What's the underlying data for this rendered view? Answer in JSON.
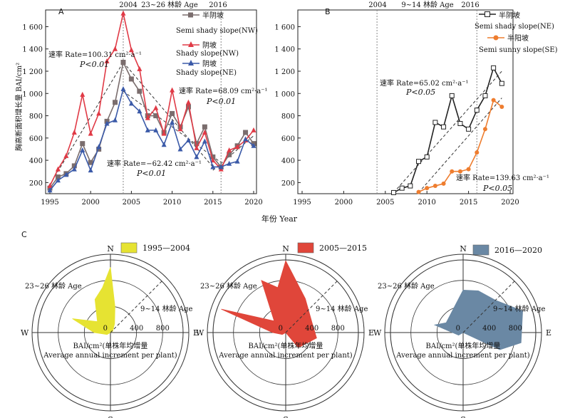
{
  "chart_data": [
    {
      "panel": "A",
      "type": "line",
      "ylabel": "胸高断面积增长量 BAI/cm²",
      "xlabel": "年份 Year",
      "xlim": [
        1995,
        2020
      ],
      "ylim": [
        100,
        1750
      ],
      "xticks": [
        "1995",
        "2000",
        "2005",
        "2010",
        "2015",
        "2020"
      ],
      "yticks": [
        "200",
        "400",
        "600",
        "800",
        "1 000",
        "1 200",
        "1 400",
        "1 600"
      ],
      "period_lines": [
        {
          "x": 2004,
          "label": "2004"
        },
        {
          "x": 2016,
          "label": "2016"
        }
      ],
      "period_label": "23~26 林龄 Age",
      "x": [
        1995,
        1996,
        1997,
        1998,
        1999,
        2000,
        2001,
        2002,
        2003,
        2004,
        2005,
        2006,
        2007,
        2008,
        2009,
        2010,
        2011,
        2012,
        2013,
        2014,
        2015,
        2016,
        2017,
        2018,
        2019,
        2020
      ],
      "series": [
        {
          "name_cn": "半阴坡",
          "name_en": "Semi shady slope(NW)",
          "color": "#7a6d6d",
          "marker": "square",
          "values": [
            150,
            250,
            280,
            350,
            550,
            380,
            500,
            750,
            920,
            1280,
            1130,
            1020,
            800,
            800,
            650,
            820,
            700,
            880,
            550,
            700,
            430,
            340,
            450,
            530,
            650,
            550
          ]
        },
        {
          "name_cn": "阴坡",
          "name_en": "Shady slope(NW)",
          "color": "#e03a46",
          "marker": "triangle",
          "values": [
            170,
            320,
            440,
            650,
            990,
            640,
            820,
            1290,
            1400,
            1720,
            1390,
            1220,
            780,
            870,
            640,
            1030,
            680,
            920,
            510,
            650,
            400,
            320,
            490,
            520,
            580,
            670
          ]
        },
        {
          "name_cn": "阴坡",
          "name_en": "Shady slope(NE)",
          "color": "#3b5aa8",
          "marker": "triangle",
          "values": [
            130,
            220,
            270,
            320,
            490,
            310,
            520,
            730,
            760,
            1040,
            910,
            840,
            670,
            670,
            540,
            740,
            500,
            580,
            430,
            570,
            340,
            340,
            370,
            390,
            590,
            530
          ]
        }
      ],
      "trends": [
        {
          "x": [
            1995,
            2004
          ],
          "y": [
            180,
            1280
          ]
        },
        {
          "x": [
            2004,
            2015
          ],
          "y": [
            1280,
            340
          ]
        },
        {
          "x": [
            2004,
            2016
          ],
          "y": [
            1020,
            380
          ]
        },
        {
          "x": [
            2015,
            2020
          ],
          "y": [
            310,
            620
          ]
        }
      ],
      "annotations": [
        {
          "line1": "速率 Rate=100.31 cm²·a⁻¹",
          "line2": "P<0.01"
        },
        {
          "line1": "速率 Rate=68.09 cm²·a⁻¹",
          "line2": "P<0.01"
        },
        {
          "line1": "速率 Rate=−62.42 cm²·a⁻¹",
          "line2": "P<0.01"
        }
      ]
    },
    {
      "panel": "B",
      "type": "line",
      "xlim": [
        1995,
        2020
      ],
      "ylim": [
        100,
        1750
      ],
      "xticks": [
        "1995",
        "2000",
        "2005",
        "2010",
        "2015",
        "2020"
      ],
      "yticks": [
        "200",
        "400",
        "600",
        "800",
        "1 000",
        "1 200",
        "1 400",
        "1 600"
      ],
      "period_lines": [
        {
          "x": 2004,
          "label": "2004"
        },
        {
          "x": 2016,
          "label": "2016"
        }
      ],
      "period_label": "9~14 林龄 Age",
      "series": [
        {
          "name_cn": "半阴坡",
          "name_en": "Semi shady slope(NE)",
          "color": "#222222",
          "marker": "square",
          "x": [
            2006,
            2007,
            2008,
            2009,
            2010,
            2011,
            2012,
            2013,
            2014,
            2015,
            2016,
            2017,
            2018,
            2019
          ],
          "values": [
            110,
            150,
            170,
            390,
            430,
            740,
            700,
            980,
            730,
            680,
            850,
            980,
            1230,
            1090
          ]
        },
        {
          "name_cn": "半阳坡",
          "name_en": "Semi sunny slope(SE)",
          "color": "#ee7d2f",
          "marker": "circle",
          "x": [
            2009,
            2010,
            2011,
            2012,
            2013,
            2014,
            2015,
            2016,
            2017,
            2018,
            2019
          ],
          "values": [
            115,
            150,
            170,
            190,
            300,
            300,
            320,
            470,
            680,
            940,
            880
          ]
        }
      ],
      "trends": [
        {
          "x": [
            2006,
            2019
          ],
          "y": [
            110,
            1200
          ]
        },
        {
          "x": [
            2009,
            2019
          ],
          "y": [
            110,
            960
          ]
        }
      ],
      "annotations": [
        {
          "line1": "速率 Rate=65.02 cm²·a⁻¹",
          "line2": "P<0.05"
        },
        {
          "line1": "速率 Rate=139.63 cm²·a⁻¹",
          "line2": "P<0.05"
        }
      ]
    },
    {
      "panel": "C",
      "type": "radar",
      "rmax": 1200,
      "ring_labels": [
        "0",
        "400",
        "800"
      ],
      "directions": [
        "N",
        "E",
        "S",
        "W"
      ],
      "label_old": "23~26 林龄 Age",
      "label_young": "9~14 林龄 Age",
      "axis_label_1": "BAI/cm²(单株年均增量",
      "axis_label_2": "Average annual increment per plant)",
      "plots": [
        {
          "period": "1995—2004",
          "color": "#e6e332",
          "points": [
            [
              -10,
              700
            ],
            [
              0,
              1000
            ],
            [
              10,
              400
            ],
            [
              25,
              150
            ],
            [
              60,
              40
            ],
            [
              100,
              0
            ],
            [
              150,
              0
            ],
            [
              200,
              0
            ],
            [
              240,
              60
            ],
            [
              270,
              250
            ],
            [
              290,
              620
            ],
            [
              310,
              260
            ],
            [
              335,
              560
            ]
          ]
        },
        {
          "period": "2005—2015",
          "color": "#e0463a",
          "points": [
            [
              -10,
              700
            ],
            [
              0,
              1100
            ],
            [
              30,
              600
            ],
            [
              70,
              430
            ],
            [
              100,
              480
            ],
            [
              140,
              300
            ],
            [
              170,
              0
            ],
            [
              200,
              0
            ],
            [
              240,
              60
            ],
            [
              270,
              200
            ],
            [
              290,
              1050
            ],
            [
              315,
              250
            ],
            [
              335,
              880
            ]
          ]
        },
        {
          "period": "2016—2020",
          "color": "#6a88a4",
          "points": [
            [
              0,
              650
            ],
            [
              20,
              680
            ],
            [
              45,
              700
            ],
            [
              70,
              970
            ],
            [
              100,
              900
            ],
            [
              115,
              620
            ],
            [
              180,
              0
            ],
            [
              240,
              80
            ],
            [
              285,
              450
            ],
            [
              300,
              300
            ]
          ]
        }
      ]
    }
  ]
}
